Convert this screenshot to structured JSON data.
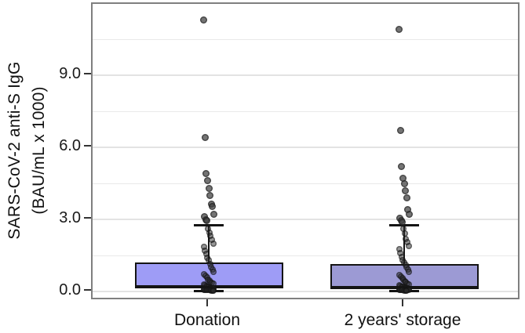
{
  "figure": {
    "background": "#ffffff",
    "panel_border_color": "#7f7f7f",
    "grid_major_color": "#e3e3e3",
    "grid_minor_color": "#e9e9e9",
    "text_color": "#1a1a1a",
    "box_outline_color": "#141414",
    "point_color": "rgba(45,45,45,0.5)"
  },
  "chart_data": {
    "type": "boxplot-with-jittered-points",
    "title": "",
    "ylabel_line1": "SARS-CoV-2 anti-S IgG",
    "ylabel_line2": "(BAU/mL x 1000)",
    "xlabel": "",
    "categories": [
      "Donation",
      "2 years' storage"
    ],
    "y_tick_labels": [
      "0.0",
      "3.0",
      "6.0",
      "9.0"
    ],
    "y_tick_values": [
      0,
      3,
      6,
      9
    ],
    "y_minor_step": 1.5,
    "y_grid_max": 10.5,
    "ylim": [
      -0.45,
      11.9
    ],
    "legend": "none",
    "series": [
      {
        "name": "Donation",
        "box_fill": "#9e9cf6",
        "box": {
          "q1": 0.13,
          "median": 0.19,
          "q3": 1.21,
          "whisker_low": 0.02,
          "whisker_high": 2.77
        },
        "points": [
          11.3,
          6.4,
          4.9,
          4.6,
          4.3,
          4.0,
          3.65,
          3.55,
          3.2,
          3.1,
          3.0,
          2.95,
          2.6,
          2.45,
          2.3,
          2.15,
          2.0,
          1.85,
          1.7,
          1.55,
          1.4,
          1.3,
          1.15,
          1.0,
          0.9,
          0.8,
          0.72,
          0.65,
          0.58,
          0.5,
          0.45,
          0.4,
          0.36,
          0.32,
          0.28,
          0.25,
          0.22,
          0.2,
          0.18,
          0.16,
          0.14,
          0.13,
          0.12,
          0.11,
          0.1,
          0.1,
          0.09,
          0.09,
          0.08,
          0.08,
          0.07,
          0.07,
          0.06,
          0.06,
          0.05,
          0.05,
          0.05,
          0.04,
          0.04,
          0.03
        ]
      },
      {
        "name": "2 years' storage",
        "box_fill": "#9c9ad4",
        "box": {
          "q1": 0.1,
          "median": 0.16,
          "q3": 1.14,
          "whisker_low": 0.02,
          "whisker_high": 2.77
        },
        "points": [
          10.9,
          6.7,
          5.2,
          4.7,
          4.5,
          4.2,
          3.9,
          3.4,
          3.2,
          3.05,
          2.95,
          2.9,
          2.6,
          2.4,
          2.2,
          2.05,
          1.9,
          1.75,
          1.6,
          1.45,
          1.3,
          1.2,
          1.1,
          1.0,
          0.9,
          0.8,
          0.7,
          0.62,
          0.55,
          0.48,
          0.42,
          0.38,
          0.33,
          0.3,
          0.27,
          0.24,
          0.21,
          0.19,
          0.17,
          0.15,
          0.13,
          0.12,
          0.11,
          0.1,
          0.1,
          0.09,
          0.09,
          0.08,
          0.08,
          0.07,
          0.07,
          0.06,
          0.06,
          0.05,
          0.05,
          0.04,
          0.04,
          0.03
        ]
      }
    ]
  }
}
